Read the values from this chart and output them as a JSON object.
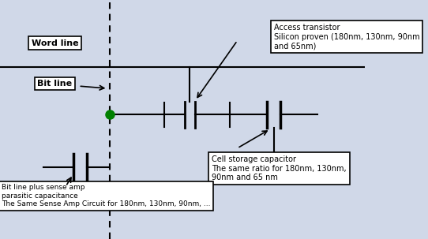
{
  "bg_color": "#d0d8e8",
  "line_color": "#000000",
  "green_color": "#008000",
  "box_bg": "#ffffff",
  "title": "",
  "word_line_label": "Word line",
  "bit_line_label": "Bit line",
  "access_transistor_title": "Access transistor",
  "access_transistor_text": "Silicon proven (180nm, 130nm, 90nm\nand 65nm)",
  "cell_cap_title": "Cell storage capacitor",
  "cell_cap_text": "The same ratio for 180nm, 130nm,\n90nm and 65 nm",
  "bottom_title": "Bit line plus sense amp\nparasitic capacitance",
  "bottom_text": "The Same Sense Amp Circuit for 180nm, 130nm, 90nm, ..."
}
